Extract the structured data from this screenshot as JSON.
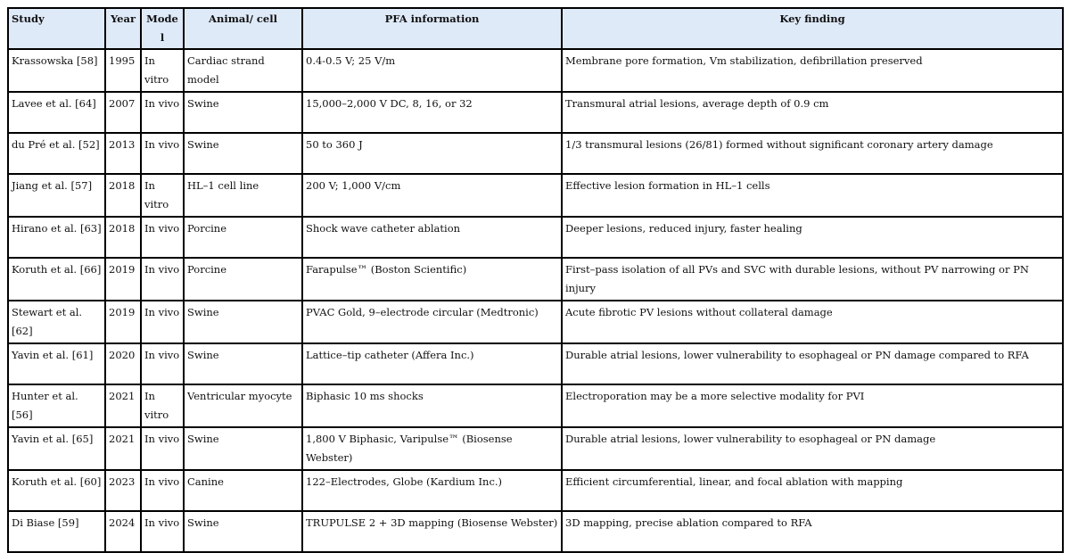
{
  "headers": [
    "Study",
    "Year",
    "Model",
    "Animal/ cell",
    "PFA information",
    "Key finding"
  ],
  "rows": [
    {
      "study": "Krassowska [58]",
      "year": "1995",
      "model": "In vitro",
      "animal": "Cardiac strand model",
      "pfa": "0.4-0.5 V; 25 V/m",
      "finding": "Membrane pore formation, Vm stabilization, defibrillation preserved"
    },
    {
      "study": "Lavee et al. [64]",
      "year": "2007",
      "model": "In vivo",
      "animal": "Swine",
      "pfa": "15,000–2,000 V DC, 8, 16, or 32",
      "finding": "Transmural atrial lesions, average depth of 0.9 cm"
    },
    {
      "study": "du Pré et al. [52]",
      "year": "2013",
      "model": "In vivo",
      "animal": "Swine",
      "pfa": "50 to 360 J",
      "finding": "1/3 transmural lesions (26/81) formed without significant coronary artery damage"
    },
    {
      "study": "Jiang et al. [57]",
      "year": "2018",
      "model": "In vitro",
      "animal": "HL–1 cell line",
      "pfa": "200 V; 1,000 V/cm",
      "finding": "Effective lesion formation in HL–1 cells"
    },
    {
      "study": "Hirano et al. [63]",
      "year": "2018",
      "model": "In vivo",
      "animal": "Porcine",
      "pfa": "Shock wave catheter ablation",
      "finding": "Deeper lesions, reduced injury, faster healing"
    },
    {
      "study": "Koruth et al. [66]",
      "year": "2019",
      "model": "In vivo",
      "animal": "Porcine",
      "pfa": "Farapulse™ (Boston Scientific)",
      "finding": "First–pass isolation of all PVs and SVC with durable lesions, without PV narrowing or PN injury"
    },
    {
      "study": "Stewart et al. [62]",
      "year": "2019",
      "model": "In vivo",
      "animal": "Swine",
      "pfa": "PVAC Gold, 9–electrode circular (Medtronic)",
      "finding": "Acute fibrotic PV lesions without collateral damage"
    },
    {
      "study": "Yavin et al. [61]",
      "year": "2020",
      "model": "In vivo",
      "animal": "Swine",
      "pfa": "Lattice–tip catheter (Affera Inc.)",
      "finding": "Durable atrial lesions, lower vulnerability to esophageal or PN damage compared to RFA"
    },
    {
      "study": "Hunter et al. [56]",
      "year": "2021",
      "model": "In vitro",
      "animal": "Ventricular myocyte",
      "pfa": "Biphasic 10 ms shocks",
      "finding": "Electroporation may be a more selective modality for PVI"
    },
    {
      "study": "Yavin et al. [65]",
      "year": "2021",
      "model": "In vivo",
      "animal": "Swine",
      "pfa": "1,800 V Biphasic, Varipulse™ (Biosense Webster)",
      "finding": "Durable atrial lesions, lower vulnerability to esophageal or PN damage"
    },
    {
      "study": "Koruth et al. [60]",
      "year": "2023",
      "model": "In vivo",
      "animal": "Canine",
      "pfa": "122–Electrodes, Globe (Kardium Inc.)",
      "finding": "Efficient circumferential, linear, and focal ablation with mapping"
    },
    {
      "study": "Di Biase [59]",
      "year": "2024",
      "model": "In vivo",
      "animal": "Swine",
      "pfa": "TRUPULSE 2 + 3D mapping (Biosense Webster)",
      "finding": "3D mapping, precise ablation compared to RFA"
    }
  ]
}
